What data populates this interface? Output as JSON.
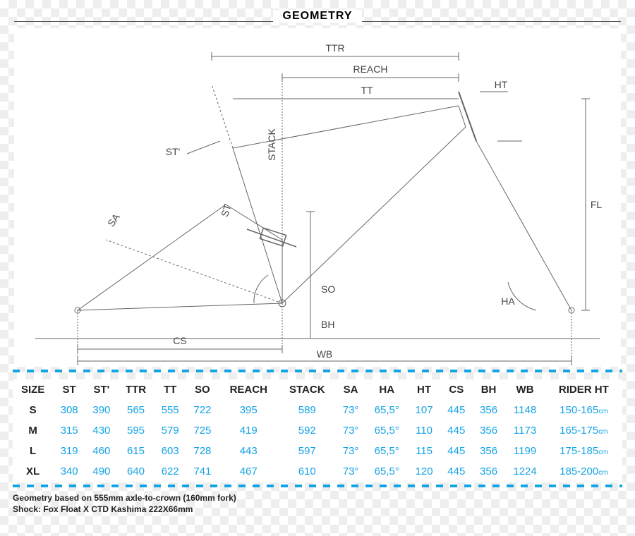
{
  "title": "GEOMETRY",
  "diagram": {
    "type": "technical-line-drawing",
    "stroke": "#666666",
    "stroke_width": 1,
    "text_color": "#444444",
    "label_fontsize": 14,
    "background_color": "#ffffff",
    "labels": {
      "ttr": "TTR",
      "reach": "REACH",
      "stack": "STACK",
      "tt": "TT",
      "ht": "HT",
      "st": "ST",
      "st_prime": "ST'",
      "sa": "SA",
      "fl": "FL",
      "ha": "HA",
      "so": "SO",
      "bh": "BH",
      "cs": "CS",
      "wb": "WB"
    }
  },
  "divider_color": "#14a4e6",
  "table": {
    "header_color": "#222222",
    "data_color": "#14a4e6",
    "fontsize": 15,
    "columns": [
      "SIZE",
      "ST",
      "ST'",
      "TTR",
      "TT",
      "SO",
      "REACH",
      "STACK",
      "SA",
      "HA",
      "HT",
      "CS",
      "BH",
      "WB",
      "RIDER HT"
    ],
    "rows": [
      {
        "size": "S",
        "st": "308",
        "stp": "390",
        "ttr": "565",
        "tt": "555",
        "so": "722",
        "reach": "395",
        "stack": "589",
        "sa": "73°",
        "ha": "65,5°",
        "ht": "107",
        "cs": "445",
        "bh": "356",
        "wb": "1148",
        "rider": "150-165",
        "unit": "cm"
      },
      {
        "size": "M",
        "st": "315",
        "stp": "430",
        "ttr": "595",
        "tt": "579",
        "so": "725",
        "reach": "419",
        "stack": "592",
        "sa": "73°",
        "ha": "65,5°",
        "ht": "110",
        "cs": "445",
        "bh": "356",
        "wb": "1173",
        "rider": "165-175",
        "unit": "cm"
      },
      {
        "size": "L",
        "st": "319",
        "stp": "460",
        "ttr": "615",
        "tt": "603",
        "so": "728",
        "reach": "443",
        "stack": "597",
        "sa": "73°",
        "ha": "65,5°",
        "ht": "115",
        "cs": "445",
        "bh": "356",
        "wb": "1199",
        "rider": "175-185",
        "unit": "cm"
      },
      {
        "size": "XL",
        "st": "340",
        "stp": "490",
        "ttr": "640",
        "tt": "622",
        "so": "741",
        "reach": "467",
        "stack": "610",
        "sa": "73°",
        "ha": "65,5°",
        "ht": "120",
        "cs": "445",
        "bh": "356",
        "wb": "1224",
        "rider": "185-200",
        "unit": "cm"
      }
    ]
  },
  "footnotes": {
    "line1": "Geometry based on 555mm axle-to-crown (160mm fork)",
    "line2": "Shock: Fox Float X CTD Kashima 222X66mm"
  }
}
